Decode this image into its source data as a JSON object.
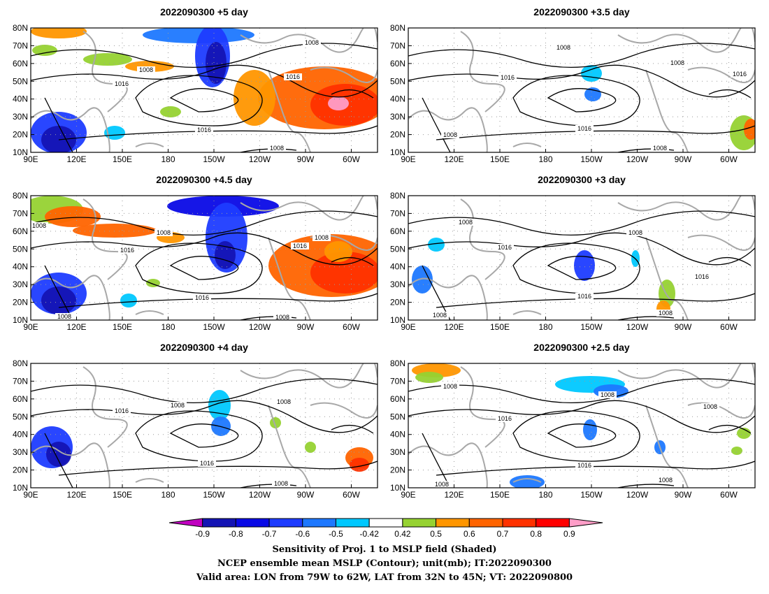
{
  "panels": [
    {
      "title": "2022090300  +5 day",
      "contour_labels": [
        "1008",
        "1008",
        "1016",
        "1016",
        "1016",
        "1008"
      ]
    },
    {
      "title": "2022090300  +3.5 day",
      "contour_labels": [
        "1008",
        "1008",
        "1016",
        "1016",
        "1016",
        "1008",
        "1008"
      ]
    },
    {
      "title": "2022090300  +4.5 day",
      "contour_labels": [
        "1008",
        "1008",
        "1016",
        "1008",
        "1016",
        "1016",
        "1008",
        "1008"
      ]
    },
    {
      "title": "2022090300  +3 day",
      "contour_labels": [
        "1008",
        "1008",
        "1016",
        "1016",
        "1016",
        "1008",
        "1008"
      ]
    },
    {
      "title": "2022090300  +4 day",
      "contour_labels": [
        "1008",
        "1016",
        "1008",
        "1016",
        "1008"
      ]
    },
    {
      "title": "2022090300  +2.5 day",
      "contour_labels": [
        "1008",
        "1008",
        "1008",
        "1016",
        "1016",
        "1008",
        "1008"
      ]
    }
  ],
  "map_axes": {
    "lat_labels": [
      "80N",
      "70N",
      "60N",
      "50N",
      "40N",
      "30N",
      "20N",
      "10N"
    ],
    "lon_labels": [
      "90E",
      "120E",
      "150E",
      "180",
      "150W",
      "120W",
      "90W",
      "60W"
    ]
  },
  "colorbar": {
    "tick_labels": [
      "-0.9",
      "-0.8",
      "-0.7",
      "-0.6",
      "-0.5",
      "-0.42",
      "0.42",
      "0.5",
      "0.6",
      "0.7",
      "0.8",
      "0.9"
    ],
    "colors": [
      "#c000c0",
      "#1414b4",
      "#0a0ae6",
      "#1e3cff",
      "#1e78ff",
      "#00c8ff",
      "#ffffff",
      "#96d232",
      "#ff9600",
      "#ff6400",
      "#ff3200",
      "#ff0000",
      "#ff9ec8"
    ]
  },
  "footer": [
    "Sensitivity of Proj. 1 to MSLP field (Shaded)",
    "NCEP ensemble mean MSLP (Contour); unit(mb); IT:2022090300",
    "Valid area: LON from 79W to 62W, LAT from 32N to 45N; VT: 2022090800"
  ]
}
